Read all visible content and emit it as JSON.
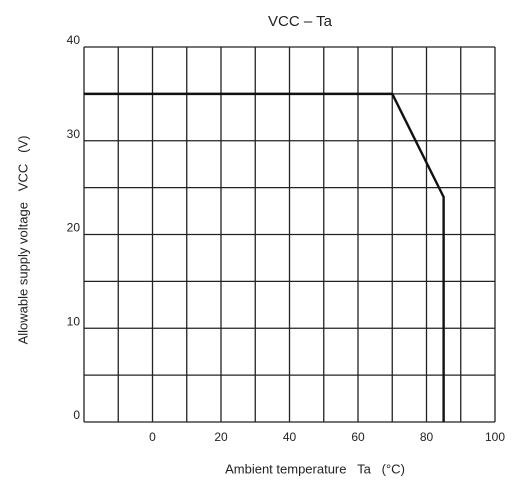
{
  "chart_data": {
    "type": "line",
    "title": "VCC – Ta",
    "x_label": "Ambient temperature   Ta   (°C)",
    "y_label": "Allowable supply voltage   VCC   (V)",
    "x": [
      -20,
      70,
      85,
      85
    ],
    "series": [
      {
        "name": null,
        "color": "#111111",
        "values": [
          35,
          35,
          24,
          0
        ]
      }
    ],
    "xlim": [
      -20,
      100
    ],
    "xticks": [
      0,
      20,
      40,
      60,
      80,
      100
    ],
    "ylim": [
      0,
      40
    ],
    "yticks": [
      0,
      10,
      20,
      30,
      40
    ],
    "xgrid": [
      -20,
      -10,
      0,
      10,
      20,
      30,
      40,
      50,
      60,
      70,
      80,
      90,
      100
    ],
    "ygrid": [
      0,
      5,
      10,
      15,
      20,
      25,
      30,
      35,
      40
    ],
    "grid": true
  }
}
